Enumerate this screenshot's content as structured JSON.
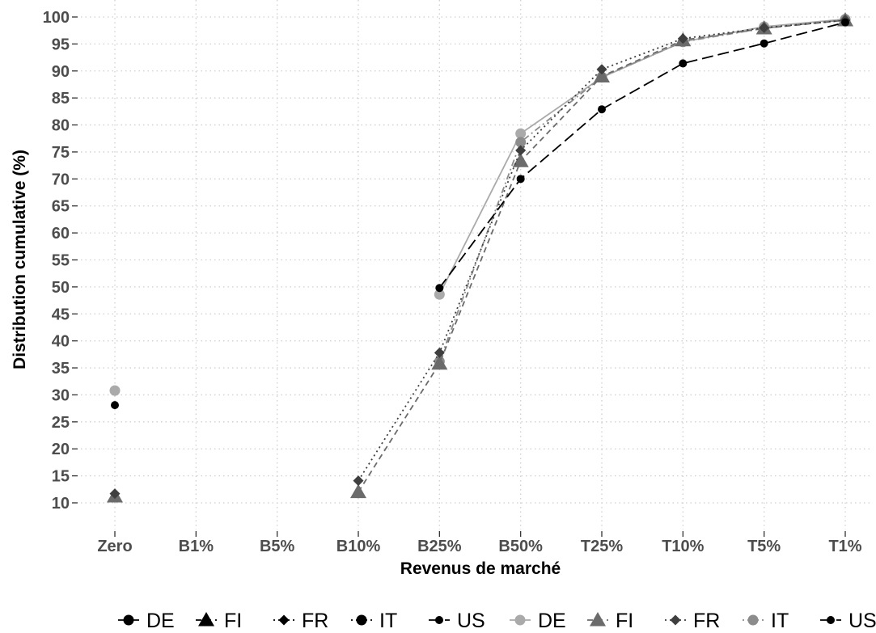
{
  "chart_data": {
    "type": "line",
    "title": "",
    "xlabel": "Revenus de marché",
    "ylabel": "Distribution cumulative (%)",
    "categories": [
      "Zero",
      "B1%",
      "B5%",
      "B10%",
      "B25%",
      "B50%",
      "T25%",
      "T10%",
      "T5%",
      "T1%"
    ],
    "y_ticks": [
      10,
      15,
      20,
      25,
      30,
      35,
      40,
      45,
      50,
      55,
      60,
      65,
      70,
      75,
      80,
      85,
      90,
      95,
      100
    ],
    "ylim": [
      5,
      101
    ],
    "grid": true,
    "legend_position": "bottom",
    "series_groups": [
      {
        "series": [
          {
            "name": "DE",
            "color": "#000000",
            "linetype": "solid",
            "marker": "circle",
            "values": [
              null,
              null,
              null,
              null,
              null,
              null,
              null,
              null,
              null,
              null
            ]
          },
          {
            "name": "FI",
            "color": "#000000",
            "linetype": "dashed",
            "marker": "triangle",
            "values": [
              null,
              null,
              null,
              null,
              null,
              null,
              null,
              null,
              null,
              null
            ]
          },
          {
            "name": "FR",
            "color": "#000000",
            "linetype": "dotted",
            "marker": "diamond",
            "values": [
              null,
              null,
              null,
              null,
              null,
              null,
              null,
              null,
              null,
              null
            ]
          },
          {
            "name": "IT",
            "color": "#000000",
            "linetype": "dotdash",
            "marker": "circle",
            "values": [
              null,
              null,
              null,
              null,
              null,
              null,
              null,
              null,
              null,
              null
            ]
          },
          {
            "name": "US",
            "color": "#000000",
            "linetype": "longdash",
            "marker": "circle-small",
            "values": [
              null,
              null,
              null,
              null,
              null,
              null,
              null,
              null,
              null,
              null
            ]
          }
        ]
      },
      {
        "series": [
          {
            "name": "DE",
            "color": "#aaaaaa",
            "linetype": "solid",
            "marker": "circle",
            "values": [
              30.8,
              null,
              null,
              null,
              48.6,
              78.4,
              88.8,
              95.4,
              98.2,
              99.6
            ]
          },
          {
            "name": "FI",
            "color": "#6b6b6b",
            "linetype": "dashed",
            "marker": "triangle",
            "values": [
              11.2,
              null,
              null,
              12.0,
              35.8,
              73.3,
              89.0,
              95.7,
              97.9,
              99.4
            ]
          },
          {
            "name": "FR",
            "color": "#3f3f3f",
            "linetype": "dotted",
            "marker": "diamond",
            "values": [
              11.7,
              null,
              null,
              14.1,
              37.8,
              75.3,
              90.3,
              96.0,
              98.0,
              99.4
            ]
          },
          {
            "name": "IT",
            "color": "#8c8c8c",
            "linetype": "dotdash",
            "marker": "circle",
            "values": [
              null,
              null,
              null,
              null,
              36.2,
              76.8,
              88.9,
              95.4,
              97.9,
              99.5
            ]
          },
          {
            "name": "US",
            "color": "#000000",
            "linetype": "longdash",
            "marker": "circle-small",
            "values": [
              28.1,
              null,
              null,
              null,
              49.8,
              70.0,
              82.9,
              91.4,
              95.1,
              99.0
            ]
          }
        ]
      }
    ]
  }
}
